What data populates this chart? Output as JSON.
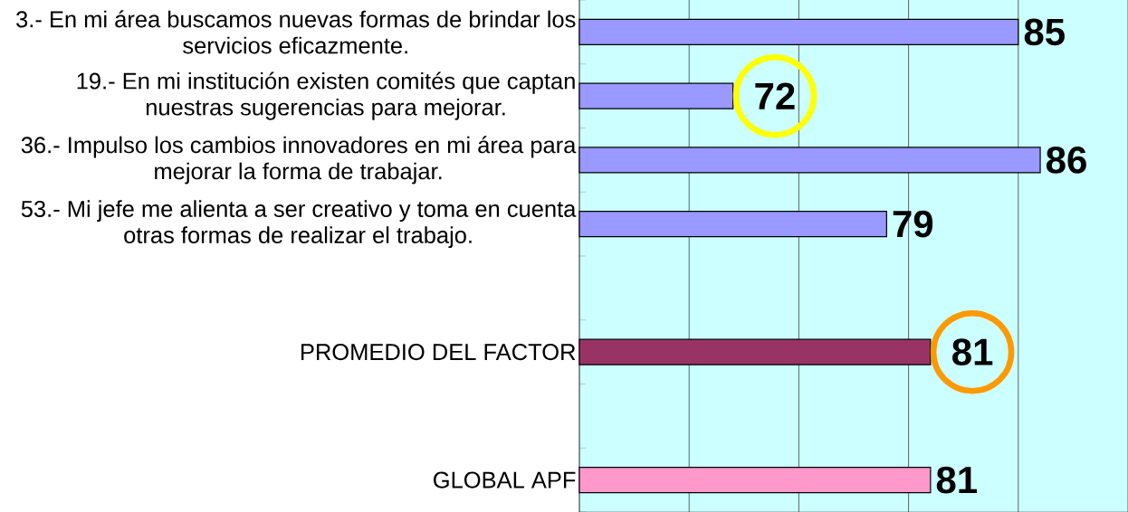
{
  "chart_data": {
    "type": "bar",
    "orientation": "horizontal",
    "categories": [
      "3.- En mi área buscamos nuevas formas de brindar los servicios eficazmente.",
      "19.- En mi institución existen comités que captan nuestras sugerencias para mejorar.",
      "36.- Impulso los cambios innovadores en mi área para mejorar la forma de trabajar.",
      "53.- Mi jefe me alienta a ser creativo y toma en cuenta otras formas de realizar el trabajo.",
      null,
      "PROMEDIO DEL FACTOR",
      null,
      "GLOBAL APF"
    ],
    "values": [
      85,
      72,
      86,
      79,
      null,
      81,
      null,
      81
    ],
    "colors": [
      "#9999ff",
      "#9999ff",
      "#9999ff",
      "#9999ff",
      null,
      "#993366",
      null,
      "#ff99cc"
    ],
    "xlim": [
      65,
      90
    ],
    "xticks": [
      {
        "value": 65,
        "label": null
      },
      {
        "value": 70,
        "label": null
      },
      {
        "value": 75,
        "label": null
      },
      {
        "value": 80,
        "label": null
      },
      {
        "value": 85,
        "label": null
      },
      {
        "value": 90,
        "label": null
      }
    ],
    "tick_labels": "y",
    "grid": "x",
    "data_labels": true
  }
}
